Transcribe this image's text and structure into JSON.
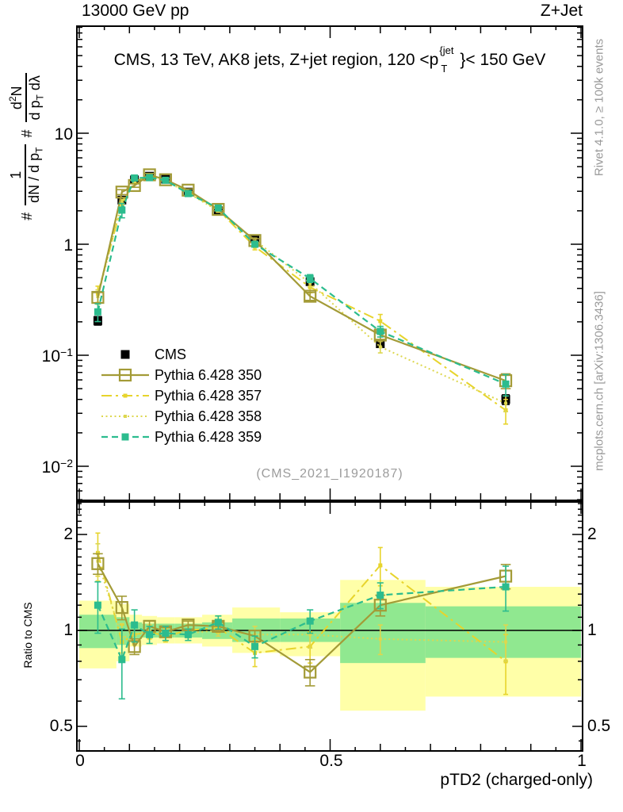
{
  "header": {
    "left": "13000 GeV pp",
    "right": "Z+Jet"
  },
  "plot_title": {
    "pre": "CMS, 13 TeV, AK8 jets, Z+jet region, 120 <p",
    "sup": "{jet",
    "sub": "T",
    "post": "}< 150 GeV"
  },
  "ylabel": {
    "hash": "#",
    "f1num": "1",
    "f1den_a": "dN / d p",
    "f1den_sub": "T",
    "f2num_a": "d",
    "f2num_sup": "2",
    "f2num_b": "N",
    "f2den_a": "d p",
    "f2den_sub": "T",
    "f2den_b": " dλ"
  },
  "ratio_ylabel": "Ratio to CMS",
  "watermark": "(CMS_2021_I1920187)",
  "side_notes": {
    "top": "Rivet 4.1.0, ≥ 100k events",
    "bottom": "mcplots.cern.ch [arXiv:1306.3436]"
  },
  "xaxis": {
    "title": "pTD2 (charged-only)",
    "ticks": [
      "0",
      "0.5",
      "1"
    ]
  },
  "yaxis_main_ticks": [
    {
      "base": "10",
      "exp": ""
    },
    {
      "base": "1",
      "exp": ""
    },
    {
      "base": "10",
      "exp": "−1"
    },
    {
      "base": "10",
      "exp": "−2"
    }
  ],
  "ratio_ticks": [
    "2",
    "1",
    "0.5"
  ],
  "colors": {
    "cms": "#000000",
    "p350": "#a39b37",
    "p357": "#e7d42c",
    "p358": "#ddd74f",
    "p359": "#2cbc8e",
    "band_yellow": "#ffffa8",
    "band_green": "#90e890",
    "gray_text": "#9a9a9a"
  },
  "chart_data": {
    "type": "line",
    "title": "CMS, 13 TeV, AK8 jets, Z+jet region, 120 <p_T^{jet}< 150 GeV",
    "xlabel": "pTD2 (charged-only)",
    "ylabel": "# 1/(dN/dp_T) # d^2N/(dp_T dλ)",
    "ratio_ylabel": "Ratio to CMS",
    "legend_position": "upper-left-inside",
    "grid": false,
    "yscale": "log",
    "xlim": [
      0,
      1
    ],
    "ylim_main": [
      0.005,
      92
    ],
    "ylim_ratio": [
      0.42,
      2.53
    ],
    "x_bin_centers": [
      0.037,
      0.085,
      0.11,
      0.14,
      0.172,
      0.217,
      0.277,
      0.35,
      0.46,
      0.6,
      0.85
    ],
    "x_bin_edges": [
      0.0,
      0.074,
      0.1,
      0.125,
      0.155,
      0.19,
      0.245,
      0.305,
      0.4,
      0.52,
      0.69,
      1.0
    ],
    "series": [
      {
        "id": "cms",
        "name": "CMS",
        "color": "#000000",
        "marker": "filled",
        "msize": 11,
        "line": "none",
        "lw": 0,
        "z": 0,
        "values": [
          0.205,
          2.5,
          3.8,
          4.1,
          3.85,
          2.95,
          2.0,
          1.12,
          0.46,
          0.127,
          0.04
        ],
        "yerr": [
          0.018,
          0.09,
          0.1,
          0.1,
          0.09,
          0.07,
          0.05,
          0.035,
          0.018,
          0.007,
          0.004
        ],
        "ratio": null,
        "ratio_err": null
      },
      {
        "id": "p350",
        "name": "Pythia 6.428 350",
        "color": "#a39b37",
        "marker": "open",
        "msize": 14,
        "line": "solid",
        "lw": 2.2,
        "z": 3,
        "values": [
          0.332,
          2.95,
          3.38,
          4.22,
          3.81,
          3.07,
          2.06,
          1.08,
          0.34,
          0.152,
          0.059
        ],
        "yerr": [
          0.035,
          0.15,
          0.12,
          0.12,
          0.1,
          0.08,
          0.06,
          0.04,
          0.028,
          0.013,
          0.009
        ],
        "ratio": [
          1.62,
          1.18,
          0.89,
          1.03,
          0.99,
          1.04,
          1.03,
          0.96,
          0.74,
          1.2,
          1.48
        ],
        "ratio_err": [
          0.12,
          0.1,
          0.05,
          0.04,
          0.03,
          0.03,
          0.03,
          0.04,
          0.07,
          0.09,
          0.13
        ]
      },
      {
        "id": "p357",
        "name": "Pythia 6.428 357",
        "color": "#e7d42c",
        "marker": "filled",
        "msize": 5,
        "line": "dashdot",
        "lw": 2,
        "z": 1,
        "values": [
          0.359,
          2.3,
          3.69,
          4.06,
          3.7,
          2.95,
          2.04,
          0.95,
          0.41,
          0.203,
          0.032
        ],
        "yerr": [
          0.06,
          0.18,
          0.14,
          0.12,
          0.11,
          0.09,
          0.07,
          0.06,
          0.045,
          0.03,
          0.008
        ],
        "ratio": [
          1.75,
          0.92,
          0.97,
          0.99,
          0.96,
          1.0,
          1.02,
          0.85,
          0.89,
          1.6,
          0.8
        ],
        "ratio_err": [
          0.27,
          0.12,
          0.07,
          0.05,
          0.04,
          0.04,
          0.04,
          0.08,
          0.1,
          0.22,
          0.17
        ]
      },
      {
        "id": "p358",
        "name": "Pythia 6.428 358",
        "color": "#ddd74f",
        "marker": "filled",
        "msize": 4,
        "line": "dot",
        "lw": 2,
        "z": 2,
        "values": [
          0.338,
          2.38,
          3.69,
          4.1,
          3.73,
          2.89,
          2.0,
          1.09,
          0.446,
          0.119,
          0.037
        ],
        "yerr": [
          0.05,
          0.15,
          0.12,
          0.11,
          0.1,
          0.08,
          0.06,
          0.045,
          0.035,
          0.014,
          0.006
        ],
        "ratio": [
          1.65,
          0.95,
          0.97,
          1.0,
          0.97,
          0.98,
          1.0,
          0.97,
          0.97,
          0.94,
          0.92
        ],
        "ratio_err": [
          0.22,
          0.1,
          0.06,
          0.04,
          0.04,
          0.03,
          0.04,
          0.06,
          0.09,
          0.1,
          0.12
        ]
      },
      {
        "id": "p359",
        "name": "Pythia 6.428 359",
        "color": "#2cbc8e",
        "marker": "filled",
        "msize": 9,
        "line": "dash",
        "lw": 2.2,
        "z": 4,
        "values": [
          0.246,
          2.03,
          3.95,
          3.98,
          3.77,
          2.86,
          2.12,
          1.0,
          0.492,
          0.164,
          0.055
        ],
        "yerr": [
          0.045,
          0.3,
          0.18,
          0.13,
          0.11,
          0.09,
          0.07,
          0.055,
          0.04,
          0.018,
          0.012
        ],
        "ratio": [
          1.2,
          0.81,
          1.04,
          0.97,
          0.98,
          0.97,
          1.06,
          0.89,
          1.07,
          1.29,
          1.37
        ],
        "ratio_err": [
          0.22,
          0.2,
          0.12,
          0.06,
          0.05,
          0.04,
          0.05,
          0.07,
          0.09,
          0.12,
          0.22
        ]
      }
    ],
    "ratio_bands": {
      "yellow": [
        [
          0.76,
          1.24
        ],
        [
          0.8,
          1.21
        ],
        [
          0.89,
          1.12
        ],
        [
          0.9,
          1.11
        ],
        [
          0.91,
          1.1
        ],
        [
          0.91,
          1.1
        ],
        [
          0.89,
          1.12
        ],
        [
          0.85,
          1.18
        ],
        [
          0.83,
          1.14
        ],
        [
          0.56,
          1.44
        ],
        [
          0.62,
          1.37
        ]
      ],
      "green": [
        [
          0.88,
          1.12
        ],
        [
          0.9,
          1.1
        ],
        [
          0.94,
          1.06
        ],
        [
          0.95,
          1.05
        ],
        [
          0.95,
          1.05
        ],
        [
          0.95,
          1.05
        ],
        [
          0.94,
          1.06
        ],
        [
          0.92,
          1.09
        ],
        [
          0.92,
          1.09
        ],
        [
          0.79,
          1.22
        ],
        [
          0.82,
          1.19
        ]
      ]
    },
    "ratio_reference": 1
  }
}
